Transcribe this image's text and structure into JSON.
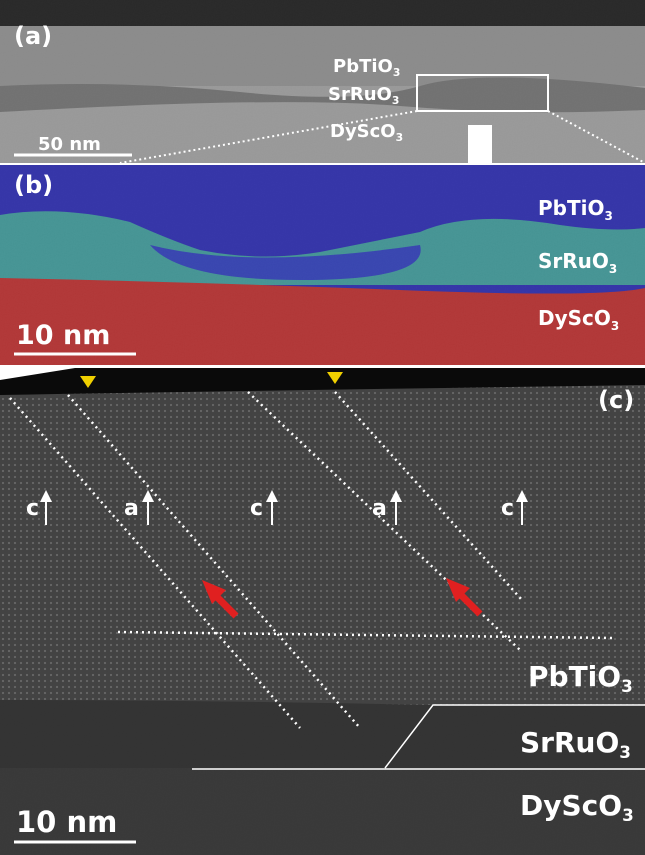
{
  "panels": [
    {
      "label": "(a)",
      "layers": [
        {
          "text": "PbTiO",
          "subscript": "3"
        },
        {
          "text": "SrRuO",
          "subscript": "3"
        },
        {
          "text": "DyScO",
          "subscript": "3"
        }
      ],
      "scale_bar": "50 nm"
    },
    {
      "label": "(b)",
      "layers": [
        {
          "text": "PbTiO",
          "subscript": "3"
        },
        {
          "text": "SrRuO",
          "subscript": "3"
        },
        {
          "text": "DyScO",
          "subscript": "3"
        }
      ],
      "scale_bar": "10 nm"
    },
    {
      "label": "(c)",
      "domains": [
        "c",
        "a",
        "c",
        "a",
        "c"
      ],
      "layers": [
        {
          "text": "PbTiO",
          "subscript": "3"
        },
        {
          "text": "SrRuO",
          "subscript": "3"
        },
        {
          "text": "DyScO",
          "subscript": "3"
        }
      ],
      "scale_bar": "10 nm"
    }
  ]
}
